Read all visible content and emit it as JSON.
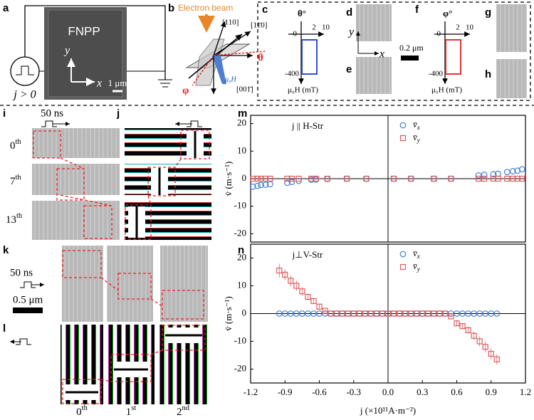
{
  "panel_labels": [
    "a",
    "b",
    "c",
    "d",
    "e",
    "f",
    "g",
    "h",
    "i",
    "j",
    "k",
    "l",
    "m",
    "n"
  ],
  "panel_a": {
    "device": "FNPP",
    "current": "j > 0",
    "axis_y": "y",
    "axis_x": "x",
    "scale": "1 μm"
  },
  "panel_b": {
    "beam": "Electron beam",
    "dir_110": "[110]",
    "dir_1m10": "[11̄0]",
    "theta": "θ",
    "phi": "φ",
    "field": "μ₀H",
    "dir_00m1": "[001̄]"
  },
  "panel_c": {
    "angle": "θ°",
    "ticks": [
      "0",
      "2",
      "10"
    ],
    "field_min": "-400",
    "xlabel": "μ₀H (mT)"
  },
  "panel_d": {
    "axis_y": "y",
    "axis_x": "x"
  },
  "scale_de": "0.2 μm",
  "panel_f": {
    "angle": "φ°",
    "ticks": [
      "0",
      "2",
      "10"
    ],
    "field_min": "-400",
    "xlabel": "μ₀H (mT)"
  },
  "panel_i": {
    "pulse": "50 ns",
    "frames": [
      "0th",
      "7th",
      "13th"
    ]
  },
  "panel_k": {
    "pulse": "50 ns",
    "scale": "0.5 μm"
  },
  "panel_l": {
    "frames": [
      "0th",
      "1st",
      "2nd"
    ]
  },
  "chart_data": [
    {
      "type": "scatter",
      "annotation": "j || H-Str",
      "ylabel": "v̄ (m·s⁻¹)",
      "xlim": [
        -1.2,
        1.2
      ],
      "ylim": [
        -23,
        23
      ],
      "yticks": [
        -20,
        -10,
        0,
        10,
        20
      ],
      "x": [
        -1.18,
        -1.14,
        -1.11,
        -1.07,
        -1.03,
        -0.88,
        -0.84,
        -0.78,
        -0.67,
        -0.63,
        -0.53,
        -0.36,
        -0.19,
        0.05,
        0.2,
        0.4,
        0.55,
        0.79,
        0.84,
        0.92,
        0.96,
        1.04,
        1.09,
        1.13,
        1.17
      ],
      "series": [
        {
          "name": "v̄x",
          "color": "#3f7fd8",
          "marker": "circle",
          "values": [
            -2.9,
            -2.6,
            -2.3,
            -2.2,
            -2.0,
            -1.5,
            -1.2,
            -0.8,
            -0.4,
            -0.3,
            -0.1,
            0,
            0,
            0,
            0,
            0,
            0,
            1.2,
            1.4,
            1.6,
            1.8,
            2.4,
            2.7,
            2.9,
            3.4
          ]
        },
        {
          "name": "v̄y",
          "color": "#e05a5a",
          "marker": "square",
          "values": [
            0,
            0,
            0,
            0,
            0,
            0,
            0,
            0,
            0,
            0,
            0,
            0,
            0,
            0,
            0,
            0,
            0,
            0,
            0,
            0,
            0,
            0,
            0,
            0,
            0
          ]
        }
      ]
    },
    {
      "type": "scatter",
      "annotation": "j⊥V-Str",
      "ylabel": "v̄ (m·s⁻¹)",
      "xlabel": "j (×10¹¹A·m⁻²)",
      "xlim": [
        -1.2,
        1.2
      ],
      "ylim": [
        -25,
        25
      ],
      "yticks": [
        -20,
        -10,
        0,
        10,
        20
      ],
      "xticks": [
        -1.2,
        -0.9,
        -0.6,
        -0.3,
        {
          "value": 0,
          "label": "0.0"
        },
        0.3,
        0.6,
        0.9,
        1.2
      ],
      "x": [
        -0.95,
        -0.9,
        -0.85,
        -0.8,
        -0.75,
        -0.7,
        -0.65,
        -0.6,
        -0.55,
        -0.5,
        -0.45,
        -0.4,
        -0.35,
        -0.3,
        -0.25,
        -0.2,
        -0.15,
        -0.1,
        -0.05,
        0,
        0.05,
        0.1,
        0.15,
        0.2,
        0.25,
        0.3,
        0.35,
        0.4,
        0.45,
        0.5,
        0.55,
        0.6,
        0.65,
        0.7,
        0.75,
        0.8,
        0.85,
        0.9,
        0.95
      ],
      "series": [
        {
          "name": "v̄x",
          "color": "#3f7fd8",
          "marker": "circle",
          "values": [
            0,
            0,
            0,
            0,
            0,
            0,
            0,
            0,
            0,
            0,
            0,
            0,
            0,
            0,
            0,
            0,
            0,
            0,
            0,
            0,
            0,
            0,
            0,
            0,
            0,
            0,
            0,
            0,
            0,
            0,
            0,
            0,
            0,
            0,
            0,
            0,
            0,
            0,
            0
          ]
        },
        {
          "name": "v̄y",
          "color": "#e05a5a",
          "marker": "square",
          "values": [
            15.5,
            14,
            11.8,
            10,
            8,
            6,
            4.5,
            2.5,
            1,
            0,
            0,
            0,
            0,
            0,
            0,
            0,
            0,
            0,
            0,
            0,
            0,
            0,
            0,
            0,
            0,
            0,
            0,
            0,
            0,
            0,
            -1,
            -3.5,
            -4.5,
            -6,
            -8,
            -10,
            -12,
            -14.5,
            -16.5
          ],
          "errors": [
            2.5,
            2,
            2,
            1.8,
            1.5,
            1.2,
            1,
            0.8,
            0.5,
            0,
            0,
            0,
            0,
            0,
            0,
            0,
            0,
            0,
            0,
            0,
            0,
            0,
            0,
            0,
            0,
            0,
            0,
            0,
            0,
            0,
            0.5,
            0.8,
            1,
            1.2,
            1.5,
            1.8,
            2,
            2,
            1.8
          ]
        }
      ]
    }
  ]
}
